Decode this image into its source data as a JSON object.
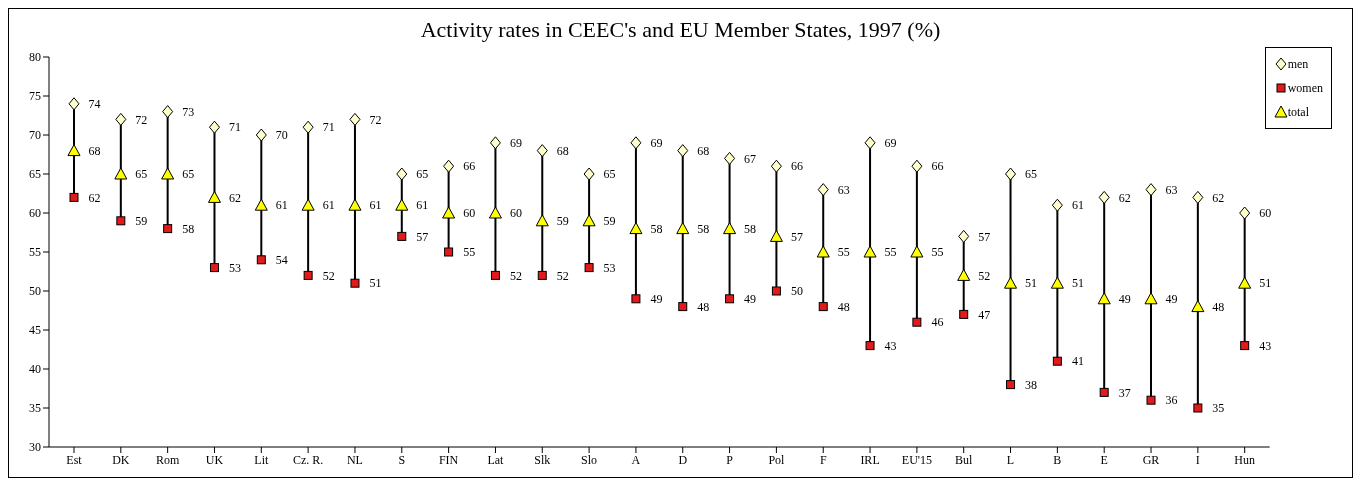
{
  "chart_data": {
    "type": "scatter",
    "title": "Activity rates in CEEC's and EU Member States, 1997 (%)",
    "categories": [
      "Est",
      "DK",
      "Rom",
      "UK",
      "Lit",
      "Cz. R.",
      "NL",
      "S",
      "FIN",
      "Lat",
      "Slk",
      "Slo",
      "A",
      "D",
      "P",
      "Pol",
      "F",
      "IRL",
      "EU'15",
      "Bul",
      "L",
      "B",
      "E",
      "GR",
      "I",
      "Hun"
    ],
    "series": [
      {
        "name": "men",
        "color": "#ffffcc",
        "marker": "diamond",
        "values": [
          74,
          72,
          73,
          71,
          70,
          71,
          72,
          65,
          66,
          69,
          68,
          65,
          69,
          68,
          67,
          66,
          63,
          69,
          66,
          57,
          65,
          61,
          62,
          63,
          62,
          60
        ]
      },
      {
        "name": "women",
        "color": "#e31a1c",
        "marker": "square",
        "values": [
          62,
          59,
          58,
          53,
          54,
          52,
          51,
          57,
          55,
          52,
          52,
          53,
          49,
          48,
          49,
          50,
          48,
          43,
          46,
          47,
          38,
          41,
          37,
          36,
          35,
          43
        ]
      },
      {
        "name": "total",
        "color": "#ffff00",
        "marker": "triangle",
        "values": [
          68,
          65,
          65,
          62,
          61,
          61,
          61,
          61,
          60,
          60,
          59,
          59,
          58,
          58,
          58,
          57,
          55,
          55,
          55,
          52,
          51,
          51,
          49,
          49,
          48,
          51
        ]
      }
    ],
    "ylim": [
      30,
      80
    ],
    "yticks": [
      30,
      35,
      40,
      45,
      50,
      55,
      60,
      65,
      70,
      75,
      80
    ],
    "legend": "top right",
    "data_labels": true
  }
}
